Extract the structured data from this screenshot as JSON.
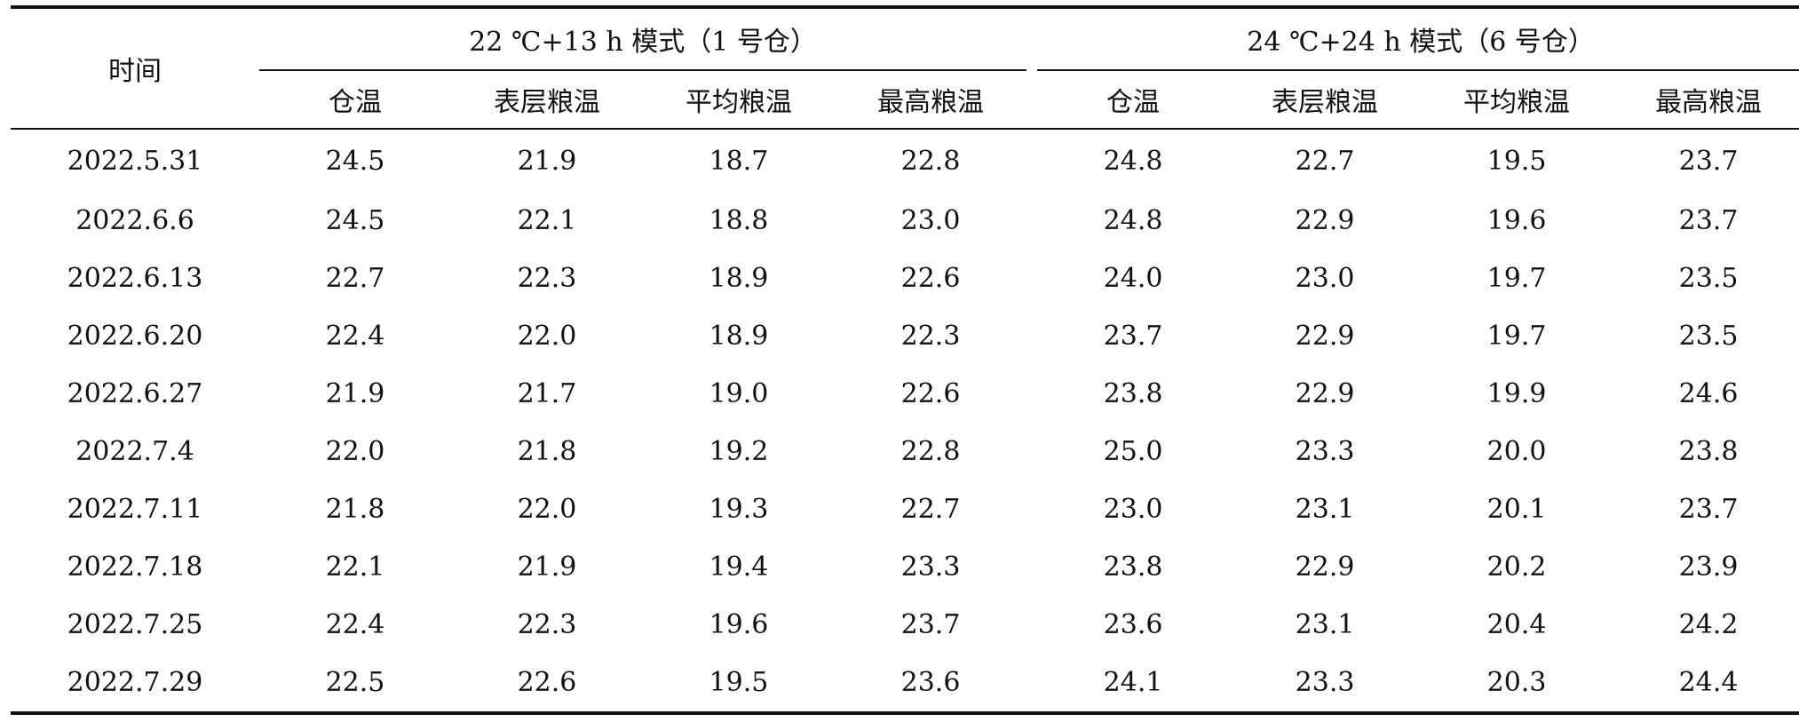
{
  "table": {
    "time_header": "时间",
    "groups": [
      {
        "label": "22 ℃+13 h 模式（1 号仓）"
      },
      {
        "label": "24 ℃+24 h 模式（6 号仓）"
      }
    ],
    "sub_headers": [
      "仓温",
      "表层粮温",
      "平均粮温",
      "最高粮温",
      "仓温",
      "表层粮温",
      "平均粮温",
      "最高粮温"
    ],
    "rows": [
      {
        "time": "2022.5.31",
        "values": [
          "24.5",
          "21.9",
          "18.7",
          "22.8",
          "24.8",
          "22.7",
          "19.5",
          "23.7"
        ]
      },
      {
        "time": "2022.6.6",
        "values": [
          "24.5",
          "22.1",
          "18.8",
          "23.0",
          "24.8",
          "22.9",
          "19.6",
          "23.7"
        ]
      },
      {
        "time": "2022.6.13",
        "values": [
          "22.7",
          "22.3",
          "18.9",
          "22.6",
          "24.0",
          "23.0",
          "19.7",
          "23.5"
        ]
      },
      {
        "time": "2022.6.20",
        "values": [
          "22.4",
          "22.0",
          "18.9",
          "22.3",
          "23.7",
          "22.9",
          "19.7",
          "23.5"
        ]
      },
      {
        "time": "2022.6.27",
        "values": [
          "21.9",
          "21.7",
          "19.0",
          "22.6",
          "23.8",
          "22.9",
          "19.9",
          "24.6"
        ]
      },
      {
        "time": "2022.7.4",
        "values": [
          "22.0",
          "21.8",
          "19.2",
          "22.8",
          "25.0",
          "23.3",
          "20.0",
          "23.8"
        ]
      },
      {
        "time": "2022.7.11",
        "values": [
          "21.8",
          "22.0",
          "19.3",
          "22.7",
          "23.0",
          "23.1",
          "20.1",
          "23.7"
        ]
      },
      {
        "time": "2022.7.18",
        "values": [
          "22.1",
          "21.9",
          "19.4",
          "23.3",
          "23.8",
          "22.9",
          "20.2",
          "23.9"
        ]
      },
      {
        "time": "2022.7.25",
        "values": [
          "22.4",
          "22.3",
          "19.6",
          "23.7",
          "23.6",
          "23.1",
          "20.4",
          "24.2"
        ]
      },
      {
        "time": "2022.7.29",
        "values": [
          "22.5",
          "22.6",
          "19.5",
          "23.6",
          "24.1",
          "23.3",
          "20.3",
          "24.4"
        ]
      }
    ]
  }
}
